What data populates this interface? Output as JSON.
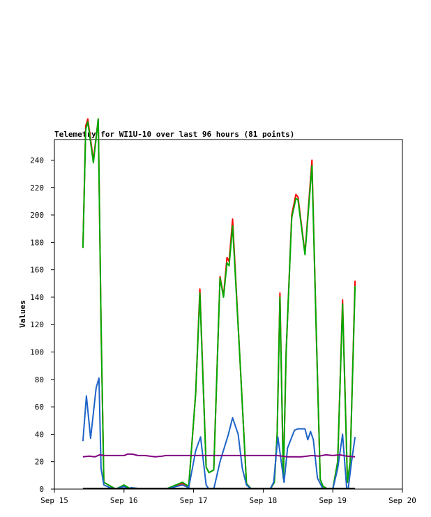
{
  "chart_data": {
    "type": "line",
    "title": "Telemetry for WI1U-10 over last 96 hours (81 points)",
    "xlabel": "",
    "ylabel": "Values",
    "ylim": [
      0,
      255
    ],
    "xlim": [
      0,
      5
    ],
    "yticks": [
      0,
      20,
      40,
      60,
      80,
      100,
      120,
      140,
      160,
      180,
      200,
      220,
      240
    ],
    "xticks": [
      {
        "v": 0,
        "label": "Sep 15"
      },
      {
        "v": 1,
        "label": "Sep 16"
      },
      {
        "v": 2,
        "label": "Sep 17"
      },
      {
        "v": 3,
        "label": "Sep 18"
      },
      {
        "v": 4,
        "label": "Sep 19"
      },
      {
        "v": 5,
        "label": "Sep 20"
      }
    ],
    "grid": false,
    "series": [
      {
        "color": "#ff0000",
        "dashed": true,
        "points": [
          [
            0.41,
            176
          ],
          [
            0.45,
            265
          ],
          [
            0.48,
            270
          ],
          [
            0.56,
            240
          ],
          [
            0.63,
            270
          ],
          [
            0.67,
            120
          ],
          [
            0.71,
            5
          ],
          [
            0.88,
            0
          ],
          [
            1.0,
            2
          ],
          [
            1.1,
            0
          ],
          [
            1.3,
            0
          ],
          [
            1.6,
            0
          ],
          [
            1.84,
            4
          ],
          [
            1.93,
            2
          ],
          [
            2.03,
            70
          ],
          [
            2.09,
            146
          ],
          [
            2.18,
            16
          ],
          [
            2.22,
            12
          ],
          [
            2.29,
            14
          ],
          [
            2.38,
            155
          ],
          [
            2.43,
            141
          ],
          [
            2.48,
            169
          ],
          [
            2.51,
            166
          ],
          [
            2.56,
            197
          ],
          [
            2.66,
            100
          ],
          [
            2.76,
            4
          ],
          [
            2.83,
            0
          ],
          [
            2.93,
            0
          ],
          [
            3.1,
            0
          ],
          [
            3.16,
            5
          ],
          [
            3.2,
            40
          ],
          [
            3.24,
            143
          ],
          [
            3.29,
            8
          ],
          [
            3.33,
            100
          ],
          [
            3.41,
            200
          ],
          [
            3.47,
            215
          ],
          [
            3.5,
            213
          ],
          [
            3.6,
            172
          ],
          [
            3.7,
            240
          ],
          [
            3.76,
            120
          ],
          [
            3.82,
            7
          ],
          [
            3.86,
            2
          ],
          [
            3.93,
            0
          ],
          [
            4.0,
            0
          ],
          [
            4.07,
            20
          ],
          [
            4.14,
            138
          ],
          [
            4.21,
            5
          ],
          [
            4.25,
            20
          ],
          [
            4.32,
            152
          ]
        ]
      },
      {
        "color": "#00aa00",
        "dashed": false,
        "points": [
          [
            0.41,
            176
          ],
          [
            0.45,
            262
          ],
          [
            0.48,
            268
          ],
          [
            0.56,
            238
          ],
          [
            0.63,
            270
          ],
          [
            0.67,
            120
          ],
          [
            0.71,
            5
          ],
          [
            0.88,
            0
          ],
          [
            1.0,
            3
          ],
          [
            1.1,
            0
          ],
          [
            1.3,
            0
          ],
          [
            1.6,
            0
          ],
          [
            1.84,
            5
          ],
          [
            1.93,
            2
          ],
          [
            2.03,
            70
          ],
          [
            2.09,
            143
          ],
          [
            2.18,
            16
          ],
          [
            2.22,
            12
          ],
          [
            2.29,
            14
          ],
          [
            2.38,
            154
          ],
          [
            2.43,
            140
          ],
          [
            2.48,
            165
          ],
          [
            2.51,
            163
          ],
          [
            2.56,
            192
          ],
          [
            2.66,
            100
          ],
          [
            2.76,
            4
          ],
          [
            2.83,
            0
          ],
          [
            2.93,
            0
          ],
          [
            3.1,
            0
          ],
          [
            3.16,
            5
          ],
          [
            3.2,
            40
          ],
          [
            3.24,
            140
          ],
          [
            3.29,
            8
          ],
          [
            3.33,
            100
          ],
          [
            3.41,
            198
          ],
          [
            3.47,
            212
          ],
          [
            3.5,
            211
          ],
          [
            3.6,
            171
          ],
          [
            3.7,
            236
          ],
          [
            3.76,
            120
          ],
          [
            3.82,
            7
          ],
          [
            3.86,
            2
          ],
          [
            3.93,
            0
          ],
          [
            4.0,
            0
          ],
          [
            4.07,
            20
          ],
          [
            4.14,
            135
          ],
          [
            4.21,
            5
          ],
          [
            4.25,
            20
          ],
          [
            4.32,
            148
          ]
        ]
      },
      {
        "color": "#1e64c8",
        "dashed": false,
        "points": [
          [
            0.41,
            35
          ],
          [
            0.46,
            68
          ],
          [
            0.52,
            37
          ],
          [
            0.6,
            74
          ],
          [
            0.64,
            81
          ],
          [
            0.67,
            15
          ],
          [
            0.71,
            3
          ],
          [
            0.8,
            1
          ],
          [
            0.88,
            0
          ],
          [
            1.0,
            2
          ],
          [
            1.06,
            0
          ],
          [
            1.1,
            1
          ],
          [
            1.3,
            0
          ],
          [
            1.6,
            0
          ],
          [
            1.84,
            3
          ],
          [
            1.93,
            1
          ],
          [
            2.03,
            28
          ],
          [
            2.1,
            38
          ],
          [
            2.18,
            3
          ],
          [
            2.22,
            0
          ],
          [
            2.29,
            0
          ],
          [
            2.38,
            20
          ],
          [
            2.5,
            40
          ],
          [
            2.56,
            52
          ],
          [
            2.64,
            40
          ],
          [
            2.7,
            15
          ],
          [
            2.76,
            3
          ],
          [
            2.83,
            0
          ],
          [
            3.1,
            0
          ],
          [
            3.15,
            5
          ],
          [
            3.21,
            38
          ],
          [
            3.3,
            5
          ],
          [
            3.35,
            30
          ],
          [
            3.45,
            43
          ],
          [
            3.5,
            44
          ],
          [
            3.6,
            44
          ],
          [
            3.64,
            36
          ],
          [
            3.68,
            42
          ],
          [
            3.72,
            36
          ],
          [
            3.78,
            8
          ],
          [
            3.86,
            0
          ],
          [
            3.93,
            0
          ],
          [
            4.0,
            0
          ],
          [
            4.07,
            15
          ],
          [
            4.14,
            40
          ],
          [
            4.2,
            0
          ],
          [
            4.22,
            0
          ],
          [
            4.27,
            20
          ],
          [
            4.32,
            38
          ]
        ]
      },
      {
        "color": "#800080",
        "dashed": false,
        "points": [
          [
            0.41,
            23.5
          ],
          [
            0.5,
            24
          ],
          [
            0.58,
            23.5
          ],
          [
            0.65,
            25
          ],
          [
            0.72,
            24.5
          ],
          [
            0.8,
            24.5
          ],
          [
            0.9,
            24.5
          ],
          [
            1.0,
            24.5
          ],
          [
            1.05,
            25.5
          ],
          [
            1.12,
            25.5
          ],
          [
            1.2,
            24.5
          ],
          [
            1.3,
            24.5
          ],
          [
            1.45,
            23.5
          ],
          [
            1.55,
            24
          ],
          [
            1.6,
            24.5
          ],
          [
            2.0,
            24.5
          ],
          [
            2.5,
            24.5
          ],
          [
            3.0,
            24.5
          ],
          [
            3.2,
            24.5
          ],
          [
            3.35,
            23.5
          ],
          [
            3.55,
            23.5
          ],
          [
            3.7,
            24.5
          ],
          [
            3.8,
            24
          ],
          [
            3.9,
            25
          ],
          [
            4.0,
            24.5
          ],
          [
            4.1,
            25
          ],
          [
            4.2,
            24
          ],
          [
            4.32,
            23.5
          ]
        ]
      },
      {
        "color": "#000000",
        "dashed": false,
        "points": [
          [
            0.41,
            0.5
          ],
          [
            4.32,
            0.5
          ]
        ]
      }
    ]
  }
}
